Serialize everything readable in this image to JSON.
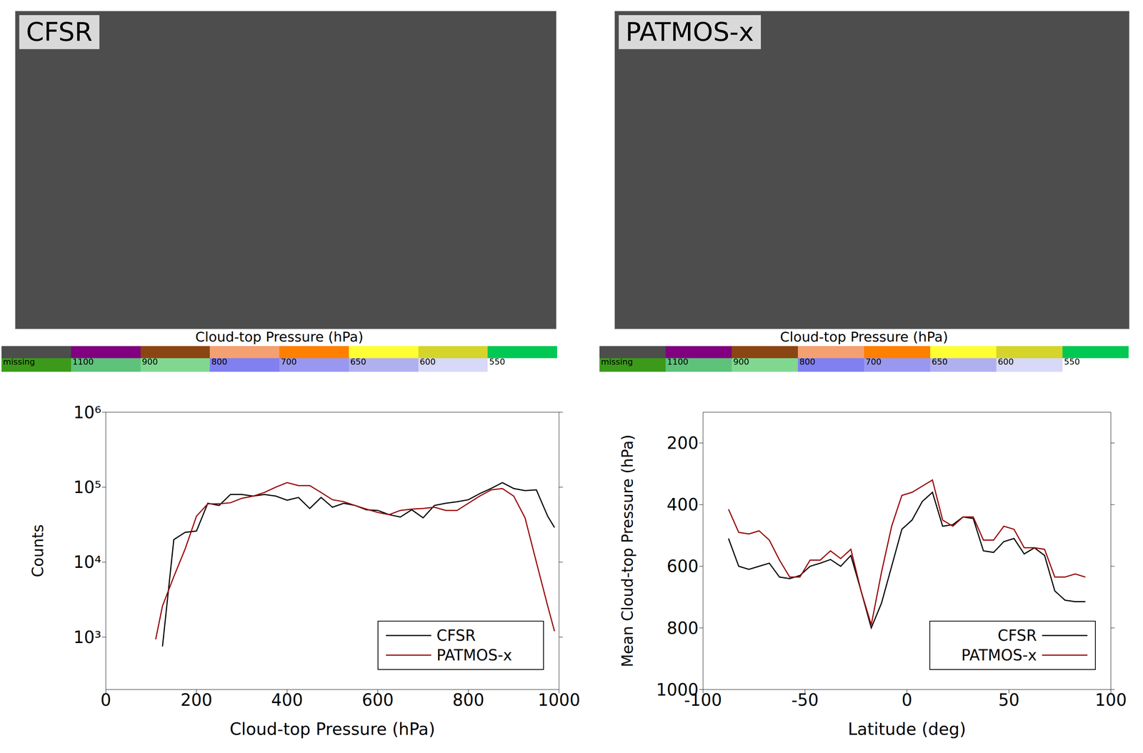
{
  "maps": [
    {
      "title": "CFSR",
      "colorbar": {
        "label": "Cloud-top Pressure (hPa)",
        "ticks": [
          "missing",
          1100,
          900,
          800,
          700,
          650,
          600,
          550
        ],
        "colors": [
          "#4d4d4d",
          "#800080",
          "#8b4513",
          "#f4a070",
          "#ff7f00",
          "#ffff33",
          "#d4d42a",
          "#00c853"
        ],
        "colors_lower": [
          "#3c9a1a",
          "#5ec27a",
          "#80d890",
          "#8080f0",
          "#9898f0",
          "#b0b0f0",
          "#d8d8f8",
          "#ffffff"
        ]
      }
    },
    {
      "title": "PATMOS-x",
      "colorbar": {
        "label": "Cloud-top Pressure (hPa)",
        "ticks": [
          "missing",
          1100,
          900,
          800,
          700,
          650,
          600,
          550
        ],
        "colors": [
          "#4d4d4d",
          "#800080",
          "#8b4513",
          "#f4a070",
          "#ff7f00",
          "#ffff33",
          "#d4d42a",
          "#00c853"
        ],
        "colors_lower": [
          "#3c9a1a",
          "#5ec27a",
          "#80d890",
          "#8080f0",
          "#9898f0",
          "#b0b0f0",
          "#d8d8f8",
          "#ffffff"
        ]
      }
    }
  ],
  "chart_data": [
    {
      "type": "line",
      "x_label": "Cloud-top Pressure (hPa)",
      "y_label": "Counts",
      "log": "y",
      "legend": "lower right",
      "xlim": [
        0,
        1000
      ],
      "xticks": [
        0,
        200,
        400,
        600,
        800,
        1000
      ],
      "ylim": [
        200,
        1000000
      ],
      "yticks": [
        {
          "value": 1000,
          "label": "10³"
        },
        {
          "value": 10000,
          "label": "10⁴"
        },
        {
          "value": 100000,
          "label": "10⁵"
        },
        {
          "value": 1000000,
          "label": "10⁶"
        }
      ],
      "series": [
        {
          "name": "CFSR",
          "color": "#000000",
          "x": [
            125,
            150,
            175,
            200,
            225,
            250,
            275,
            300,
            325,
            350,
            375,
            400,
            425,
            450,
            475,
            500,
            525,
            550,
            575,
            600,
            625,
            650,
            675,
            700,
            725,
            750,
            775,
            800,
            825,
            850,
            875,
            900,
            925,
            950,
            975,
            990
          ],
          "values": [
            750,
            20000,
            25000,
            26000,
            61000,
            57000,
            80000,
            80000,
            76000,
            80000,
            76000,
            67000,
            73000,
            52000,
            73000,
            54000,
            61000,
            57000,
            50000,
            49000,
            43000,
            40000,
            50000,
            39000,
            57000,
            61000,
            64000,
            68000,
            82000,
            96000,
            115000,
            96000,
            90000,
            92000,
            41000,
            29000
          ]
        },
        {
          "name": "PATMOS-x",
          "color": "#990000",
          "x": [
            110,
            125,
            150,
            175,
            200,
            225,
            250,
            275,
            300,
            325,
            350,
            375,
            400,
            425,
            450,
            475,
            500,
            525,
            550,
            575,
            600,
            625,
            650,
            675,
            700,
            725,
            750,
            775,
            800,
            825,
            850,
            875,
            900,
            925,
            950,
            975,
            990
          ],
          "values": [
            935,
            2600,
            6400,
            15000,
            41000,
            60000,
            60000,
            62000,
            71000,
            76000,
            85000,
            100000,
            115000,
            105000,
            105000,
            85000,
            68000,
            64000,
            57000,
            51000,
            46000,
            43000,
            49000,
            51000,
            52000,
            54000,
            49000,
            49000,
            61000,
            76000,
            92000,
            96000,
            76000,
            39000,
            10000,
            2600,
            1200
          ]
        }
      ]
    },
    {
      "type": "line",
      "x_label": "Latitude (deg)",
      "y_label": "Mean Cloud-top Pressure (hPa)",
      "legend": "lower right",
      "xlim": [
        -100,
        100
      ],
      "xticks": [
        -100,
        -50,
        0,
        50,
        100
      ],
      "ylim": [
        1000,
        100
      ],
      "yticks": [
        200,
        400,
        600,
        800,
        1000
      ],
      "series": [
        {
          "name": "CFSR",
          "color": "#000000",
          "x": [
            -87.5,
            -82.5,
            -77.5,
            -72.5,
            -67.5,
            -62.5,
            -57.5,
            -52.5,
            -47.5,
            -42.5,
            -37.5,
            -32.5,
            -27.5,
            -22.5,
            -17.5,
            -12.5,
            -7.5,
            -2.5,
            2.5,
            7.5,
            12.5,
            17.5,
            22.5,
            27.5,
            32.5,
            37.5,
            42.5,
            47.5,
            52.5,
            57.5,
            62.5,
            67.5,
            72.5,
            77.5,
            82.5,
            87.5
          ],
          "values": [
            510,
            600,
            610,
            600,
            590,
            635,
            640,
            630,
            600,
            590,
            578,
            600,
            565,
            680,
            800,
            720,
            600,
            480,
            450,
            390,
            360,
            470,
            465,
            440,
            445,
            550,
            555,
            520,
            510,
            560,
            540,
            565,
            680,
            710,
            715,
            715
          ]
        },
        {
          "name": "PATMOS-x",
          "color": "#990000",
          "x": [
            -87.5,
            -82.5,
            -77.5,
            -72.5,
            -67.5,
            -62.5,
            -57.5,
            -52.5,
            -47.5,
            -42.5,
            -37.5,
            -32.5,
            -27.5,
            -22.5,
            -17.5,
            -12.5,
            -7.5,
            -2.5,
            2.5,
            7.5,
            12.5,
            17.5,
            22.5,
            27.5,
            32.5,
            37.5,
            42.5,
            47.5,
            52.5,
            57.5,
            62.5,
            67.5,
            72.5,
            77.5,
            82.5,
            87.5
          ],
          "values": [
            415,
            490,
            495,
            485,
            515,
            580,
            635,
            635,
            580,
            580,
            550,
            575,
            545,
            680,
            790,
            620,
            470,
            370,
            360,
            340,
            320,
            450,
            470,
            440,
            440,
            515,
            515,
            470,
            480,
            540,
            540,
            545,
            635,
            635,
            625,
            635
          ]
        }
      ]
    }
  ]
}
